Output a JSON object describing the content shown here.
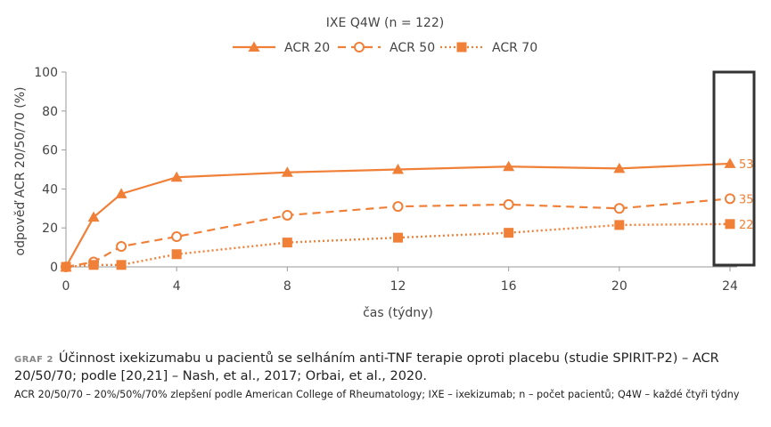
{
  "chart_data": {
    "type": "line",
    "title": "IXE Q4W (n = 122)",
    "xlabel": "čas (týdny)",
    "ylabel": "odpověď ACR 20/50/70 (%)",
    "x": [
      0,
      1,
      2,
      4,
      8,
      12,
      16,
      20,
      24
    ],
    "xticks": [
      "0",
      "4",
      "8",
      "12",
      "16",
      "20",
      "24"
    ],
    "yticks": [
      "0",
      "20",
      "40",
      "60",
      "80",
      "100"
    ],
    "xlim": [
      0,
      24
    ],
    "ylim": [
      0,
      100
    ],
    "grid": false,
    "legend_position": "top",
    "series": [
      {
        "name": "ACR 20",
        "values": [
          0,
          25.5,
          37.5,
          46,
          48.5,
          50,
          51.5,
          50.5,
          53
        ],
        "end_label": "53",
        "marker": "triangle",
        "line": "solid"
      },
      {
        "name": "ACR 50",
        "values": [
          0,
          2.5,
          10.5,
          15.5,
          26.5,
          31,
          32,
          30,
          35
        ],
        "end_label": "35",
        "marker": "circle-open",
        "line": "dashed"
      },
      {
        "name": "ACR 70",
        "values": [
          0,
          1,
          1,
          6.5,
          12.5,
          15,
          17.5,
          21.5,
          22
        ],
        "end_label": "22",
        "marker": "square",
        "line": "dotted"
      }
    ],
    "highlight": "week 24"
  },
  "colors": {
    "series": "#F07F38",
    "axis": "#9a9a9a",
    "text": "#444444",
    "highlight_box": "#333333"
  },
  "caption": {
    "tag": "GRAF 2",
    "text": "Účinnost ixekizumabu u pacientů se selháním anti-TNF terapie oproti placebu (studie SPIRIT-P2) – ACR 20/50/70; podle [20,21] – Nash, et al., 2017; Orbai, et al., 2020.",
    "note": "ACR 20/50/70 – 20%/50%/70% zlepšení podle American College of Rheumatology; IXE – ixekizumab; n – počet pacientů; Q4W – každé čtyři týdny"
  }
}
